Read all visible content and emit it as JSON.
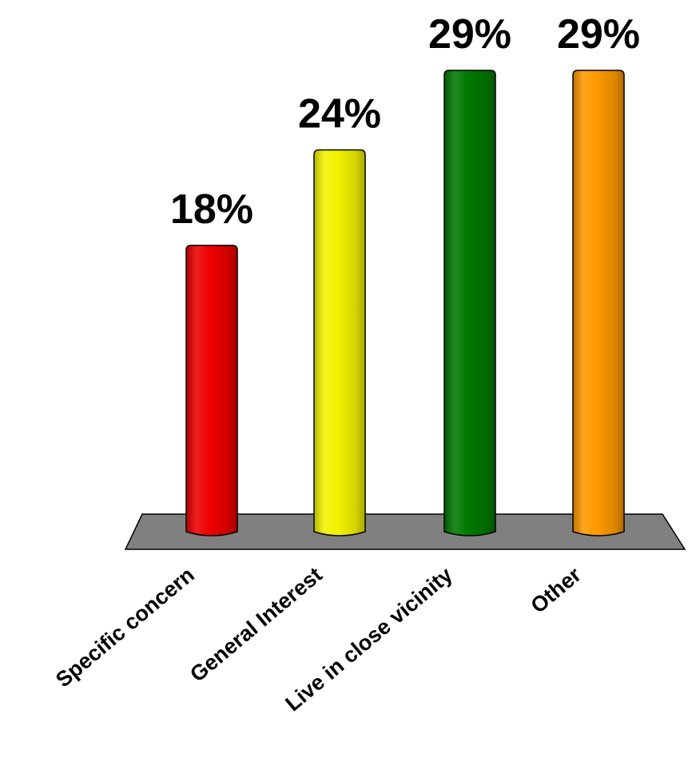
{
  "chart_data": {
    "type": "bar",
    "categories": [
      "Specific concern",
      "General Interest",
      "Live in close vicinity",
      "Other"
    ],
    "values": [
      18,
      24,
      29,
      29
    ],
    "data_labels": [
      "18%",
      "24%",
      "29%",
      "29%"
    ],
    "colors": [
      "#ee0000",
      "#f2f200",
      "#007a00",
      "#ff9900"
    ],
    "floor_color": "#808080",
    "ylim": [
      0,
      29
    ],
    "grid": false,
    "legend": "none"
  }
}
